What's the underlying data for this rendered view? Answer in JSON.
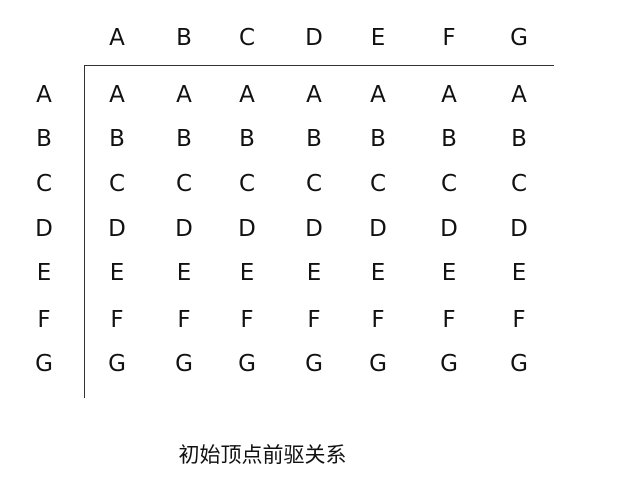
{
  "matrix": {
    "column_headers": [
      "A",
      "B",
      "C",
      "D",
      "E",
      "F",
      "G"
    ],
    "row_headers": [
      "A",
      "B",
      "C",
      "D",
      "E",
      "F",
      "G"
    ],
    "cells": [
      [
        "A",
        "A",
        "A",
        "A",
        "A",
        "A",
        "A"
      ],
      [
        "B",
        "B",
        "B",
        "B",
        "B",
        "B",
        "B"
      ],
      [
        "C",
        "C",
        "C",
        "C",
        "C",
        "C",
        "C"
      ],
      [
        "D",
        "D",
        "D",
        "D",
        "D",
        "D",
        "D"
      ],
      [
        "E",
        "E",
        "E",
        "E",
        "E",
        "E",
        "E"
      ],
      [
        "F",
        "F",
        "F",
        "F",
        "F",
        "F",
        "F"
      ],
      [
        "G",
        "G",
        "G",
        "G",
        "G",
        "G",
        "G"
      ]
    ]
  },
  "caption": "初始顶点前驱关系",
  "colors": {
    "text": "#111111",
    "rule": "#333333",
    "background": "#ffffff"
  }
}
